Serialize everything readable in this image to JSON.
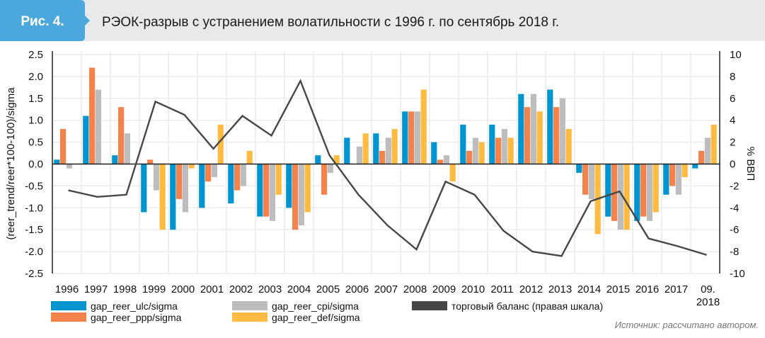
{
  "header": {
    "figure_label": "Рис. 4.",
    "title": "РЭОК-разрыв с устранением волатильности с 1996 г. по сентябрь 2018 г."
  },
  "source": "Источник: рассчитано автором.",
  "colors": {
    "badge": "#4ba8dd",
    "header_bg": "#e8e9eb",
    "ulc": "#0095d0",
    "ppp": "#f3834b",
    "cpi": "#bdbdbf",
    "def": "#fdbc41",
    "trade": "#474747"
  },
  "chart_data": {
    "type": "bar",
    "title": "РЭОК-разрыв с устранением волатильности с 1996 г. по сентябрь 2018 г.",
    "categories": [
      "1996",
      "1997",
      "1998",
      "1999",
      "2000",
      "2001",
      "2002",
      "2003",
      "2004",
      "2005",
      "2006",
      "2007",
      "2008",
      "2009",
      "2010",
      "2011",
      "2012",
      "2013",
      "2014",
      "2015",
      "2016",
      "2017",
      [
        "09.",
        "2018"
      ]
    ],
    "ylabel": "(reer_trend/reer*100-100)/sigma",
    "ylabel_right": "% ВВП",
    "ylim": [
      -2.5,
      2.5
    ],
    "ylim_right": [
      -10,
      10
    ],
    "yticks": [
      "2.5",
      "2.0",
      "1.5",
      "1.0",
      "0.5",
      "0.0",
      "-0.5",
      "-1.0",
      "-1.5",
      "-2.0",
      "-2.5"
    ],
    "yticks_right": [
      "10",
      "8",
      "6",
      "4",
      "2",
      "0",
      "-2",
      "-4",
      "-6",
      "-8",
      "-10"
    ],
    "grid": true,
    "legend_placement": "bottom",
    "series": [
      {
        "name": "gap_reer_ulc/sigma",
        "key": "ulc",
        "axis": "left",
        "kind": "bar",
        "values": [
          0.1,
          1.1,
          0.2,
          -1.1,
          -1.5,
          -1.0,
          -0.9,
          -1.2,
          -1.0,
          0.2,
          0.6,
          0.7,
          1.2,
          0.5,
          0.9,
          0.9,
          1.6,
          1.7,
          -0.2,
          -1.2,
          -1.3,
          -0.7,
          -0.1
        ]
      },
      {
        "name": "gap_reer_ppp/sigma",
        "key": "ppp",
        "axis": "left",
        "kind": "bar",
        "values": [
          0.8,
          2.2,
          1.3,
          0.1,
          -0.8,
          -0.4,
          -0.6,
          -1.2,
          -1.5,
          -0.7,
          0.0,
          0.3,
          1.2,
          0.1,
          0.3,
          0.6,
          1.3,
          1.3,
          -0.7,
          -1.3,
          -1.2,
          -0.5,
          0.3
        ]
      },
      {
        "name": "gap_reer_cpi/sigma",
        "key": "cpi",
        "axis": "left",
        "kind": "bar",
        "values": [
          -0.1,
          1.7,
          0.7,
          -0.6,
          -1.1,
          -0.3,
          -0.5,
          -1.3,
          -1.4,
          -0.2,
          0.4,
          0.6,
          1.2,
          0.2,
          0.6,
          0.8,
          1.6,
          1.5,
          -0.8,
          -1.5,
          -1.3,
          -0.7,
          0.6
        ]
      },
      {
        "name": "gap_reer_def/sigma",
        "key": "def",
        "axis": "left",
        "kind": "bar",
        "values": [
          0.0,
          0.0,
          0.0,
          -1.5,
          -0.1,
          0.9,
          0.3,
          -0.7,
          -1.1,
          0.2,
          0.7,
          0.8,
          1.7,
          -0.4,
          0.5,
          0.6,
          1.2,
          0.8,
          -1.6,
          -1.5,
          -1.1,
          -0.3,
          0.9
        ]
      },
      {
        "name": "торговый баланс (правая шкала)",
        "key": "trade",
        "axis": "right",
        "kind": "line",
        "values": [
          -2.4,
          -3.0,
          -2.8,
          5.7,
          4.5,
          1.4,
          4.4,
          2.6,
          7.6,
          0.8,
          -2.8,
          -5.6,
          -7.8,
          -1.6,
          -2.8,
          -6.1,
          -8.0,
          -8.4,
          -3.4,
          -2.5,
          -6.8,
          -7.5,
          -8.3
        ]
      }
    ]
  }
}
